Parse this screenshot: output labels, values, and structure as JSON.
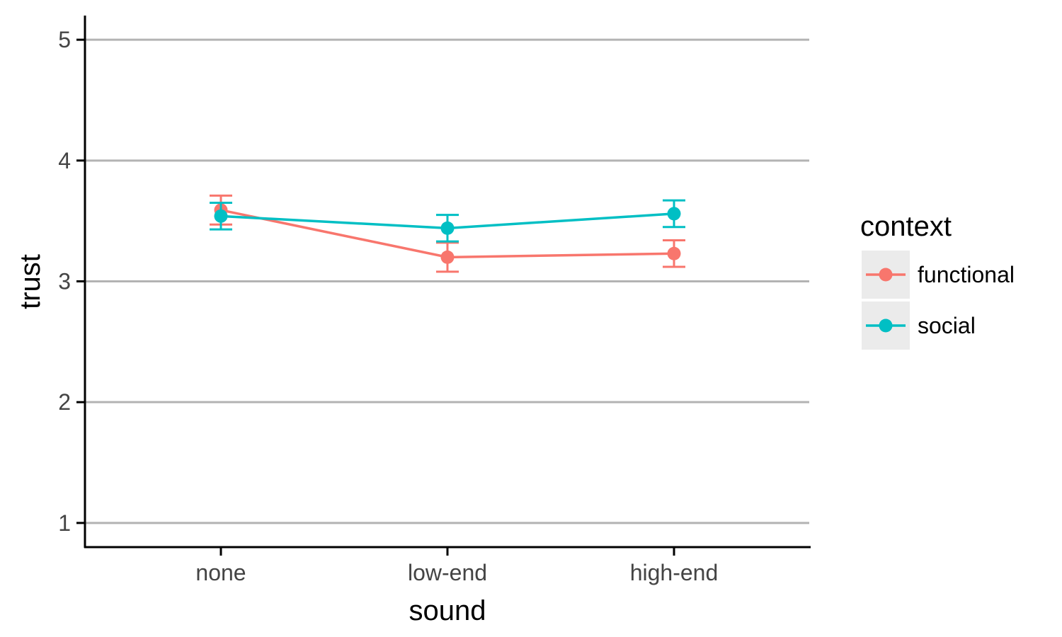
{
  "chart_data": {
    "type": "line",
    "xlabel": "sound",
    "ylabel": "trust",
    "categories": [
      "none",
      "low-end",
      "high-end"
    ],
    "ylim": [
      0.8,
      5.2
    ],
    "yticks": [
      1,
      2,
      3,
      4,
      5
    ],
    "grid": "horizontal major gridlines",
    "error_bars": true,
    "legend": {
      "title": "context",
      "position": "right"
    },
    "series": [
      {
        "name": "functional",
        "color": "#F8766D",
        "values": [
          3.59,
          3.2,
          3.23
        ],
        "error_low": [
          3.47,
          3.08,
          3.12
        ],
        "error_high": [
          3.71,
          3.32,
          3.34
        ]
      },
      {
        "name": "social",
        "color": "#00BFC4",
        "values": [
          3.54,
          3.44,
          3.56
        ],
        "error_low": [
          3.43,
          3.33,
          3.45
        ],
        "error_high": [
          3.65,
          3.55,
          3.67
        ]
      }
    ]
  }
}
